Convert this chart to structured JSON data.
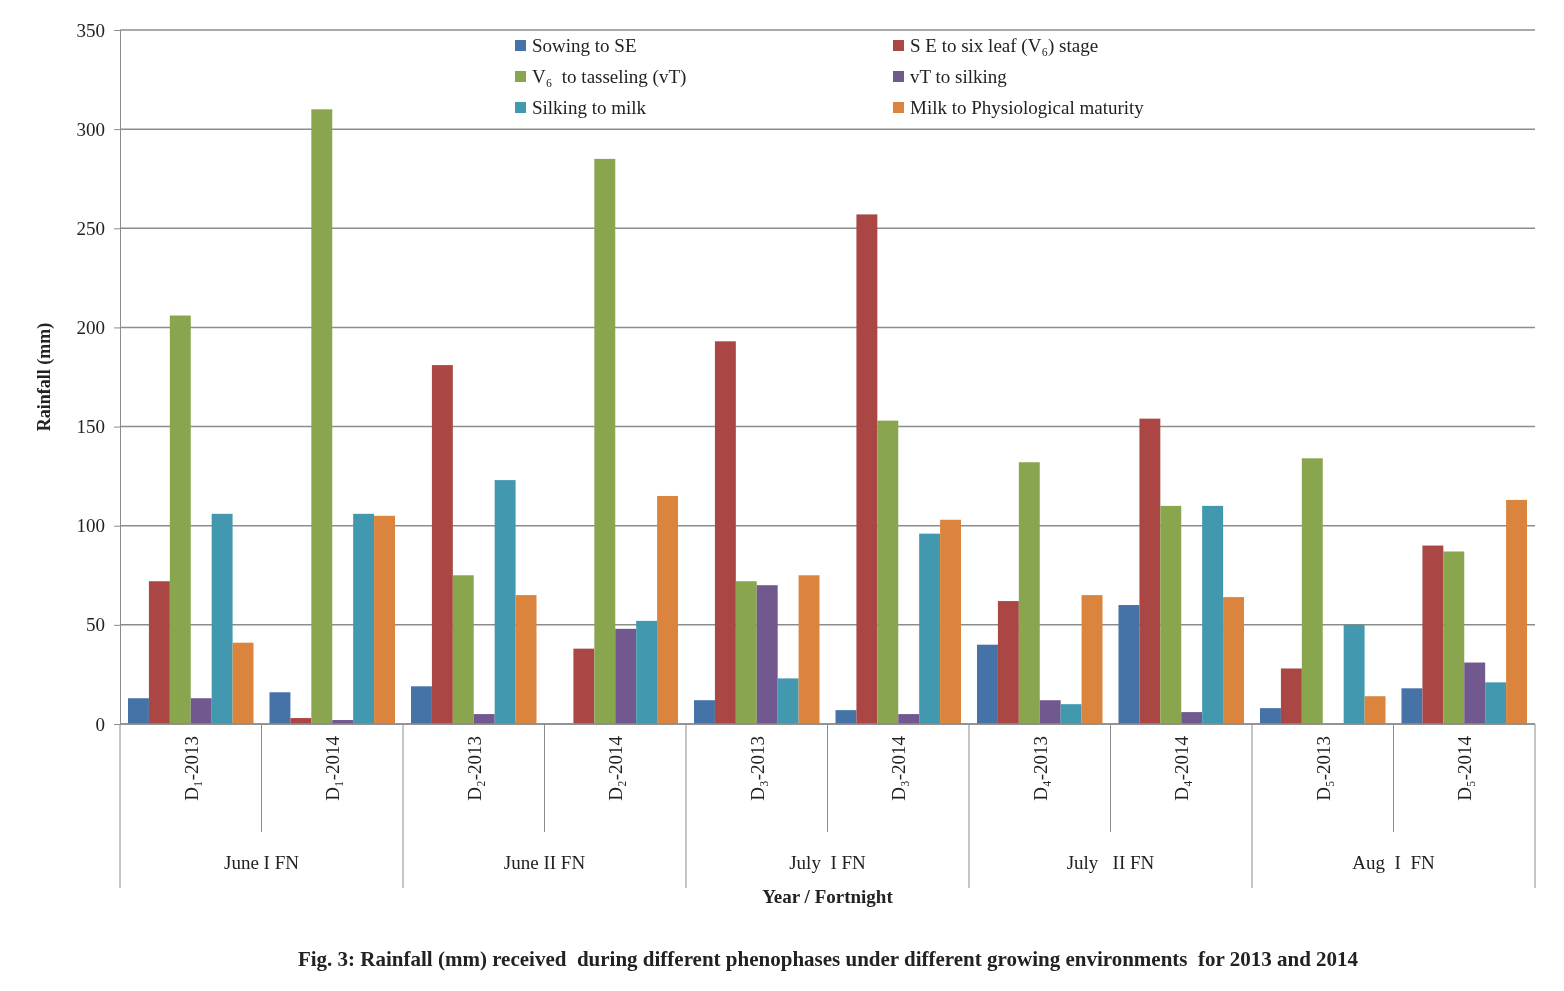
{
  "chart_data": {
    "type": "bar",
    "title": "Fig. 3: Rainfall (mm) received  during different phenophases under different growing environments  for 2013 and 2014",
    "xlabel": "Year / Fortnight",
    "ylabel": "Rainfall (mm)",
    "categories": [
      "D₁-2013",
      "D₁-2014",
      "D₂-2013",
      "D₂-2014",
      "D₃-2013",
      "D₃-2014",
      "D₄-2013",
      "D₄-2014",
      "D₅-2013",
      "D₅-2014"
    ],
    "annotations": [
      "June I FN",
      "June II FN",
      "July  I FN",
      "July   II FN",
      "Aug  I  FN"
    ],
    "series": [
      {
        "name": "Sowing to SE",
        "color": "#4572a7",
        "values": [
          13,
          16,
          19,
          0,
          12,
          7,
          40,
          60,
          8,
          18
        ]
      },
      {
        "name": "S E to six leaf (V₆) stage",
        "color": "#aa4643",
        "values": [
          72,
          3,
          181,
          38,
          193,
          257,
          62,
          154,
          28,
          90
        ]
      },
      {
        "name": "V₆  to tasseling (vT)",
        "color": "#89a54e",
        "values": [
          206,
          310,
          75,
          285,
          72,
          153,
          132,
          110,
          134,
          87
        ]
      },
      {
        "name": "vT to silking",
        "color": "#71588f",
        "values": [
          13,
          2,
          5,
          48,
          70,
          5,
          12,
          6,
          0,
          31
        ]
      },
      {
        "name": "Silking to milk",
        "color": "#4198af",
        "values": [
          106,
          106,
          123,
          52,
          23,
          96,
          10,
          110,
          50,
          21
        ]
      },
      {
        "name": "Milk to Physiological maturity",
        "color": "#db843d",
        "values": [
          41,
          105,
          65,
          115,
          75,
          103,
          65,
          64,
          14,
          113
        ]
      }
    ],
    "ylim": [
      0,
      350
    ],
    "yticks": [
      0,
      50,
      100,
      150,
      200,
      250,
      300,
      350
    ],
    "grid": "y",
    "legend": "top"
  }
}
